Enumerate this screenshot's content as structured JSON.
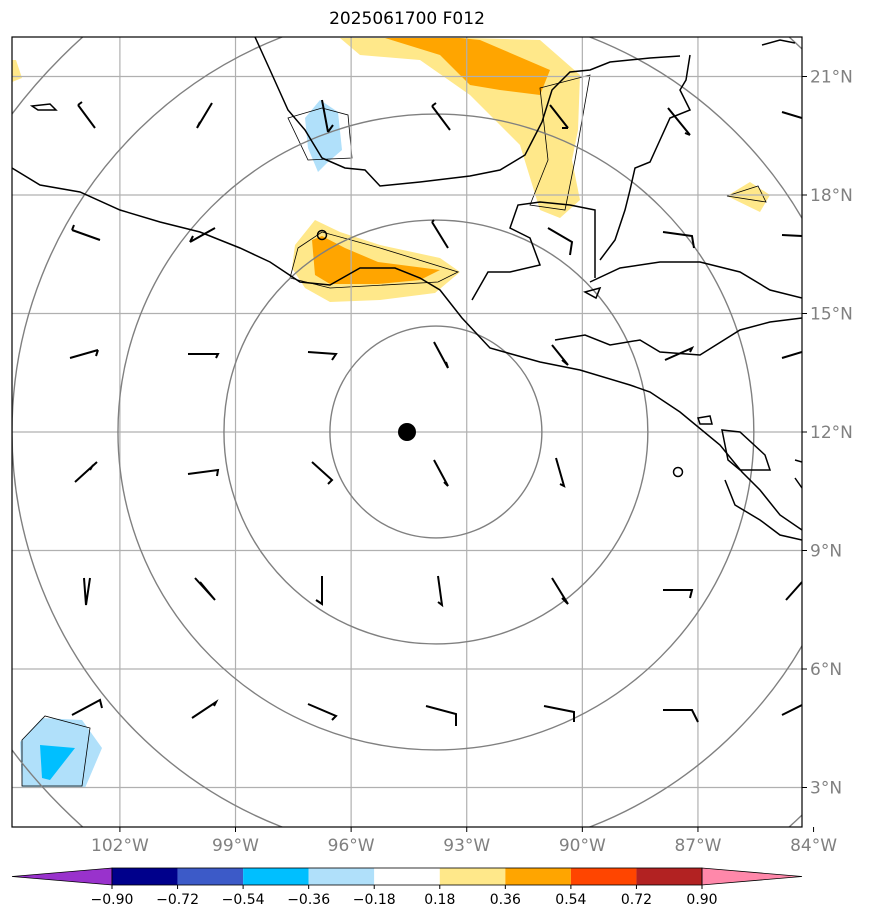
{
  "title": "2025061700 F012",
  "map": {
    "lon_range": [
      -104.8,
      -84.3
    ],
    "lat_range": [
      2.0,
      22.0
    ],
    "lon_ticks": [
      {
        "value": -102,
        "label": "102°W"
      },
      {
        "value": -99,
        "label": "99°W"
      },
      {
        "value": -96,
        "label": "96°W"
      },
      {
        "value": -93,
        "label": "93°W"
      },
      {
        "value": -90,
        "label": "90°W"
      },
      {
        "value": -87,
        "label": "87°W"
      },
      {
        "value": -84,
        "label": "84°W"
      }
    ],
    "lat_ticks": [
      {
        "value": 3,
        "label": "3°N"
      },
      {
        "value": 6,
        "label": "6°N"
      },
      {
        "value": 9,
        "label": "9°N"
      },
      {
        "value": 12,
        "label": "12°N"
      },
      {
        "value": 15,
        "label": "15°N"
      },
      {
        "value": 18,
        "label": "18°N"
      },
      {
        "value": 21,
        "label": "21°N"
      }
    ],
    "center": {
      "lon": -93.8,
      "lat": 12.0
    },
    "range_rings_deg": [
      2.75,
      5.5,
      8.25,
      11.0,
      13.75
    ],
    "grid": true,
    "colors": {
      "grid": "#b0b0b0",
      "rings": "#808080",
      "coast": "#000000"
    }
  },
  "colorbar": {
    "levels": [
      "−0.90",
      "−0.72",
      "−0.54",
      "−0.36",
      "−0.18",
      "0.18",
      "0.36",
      "0.54",
      "0.72",
      "0.90"
    ],
    "colors": [
      "#9932cc",
      "#00008b",
      "#3c5ac8",
      "#00bfff",
      "#b0e0fa",
      "#ffffff",
      "#ffe88a",
      "#ffa500",
      "#ff4500",
      "#b22222",
      "#ff88aa"
    ]
  }
}
